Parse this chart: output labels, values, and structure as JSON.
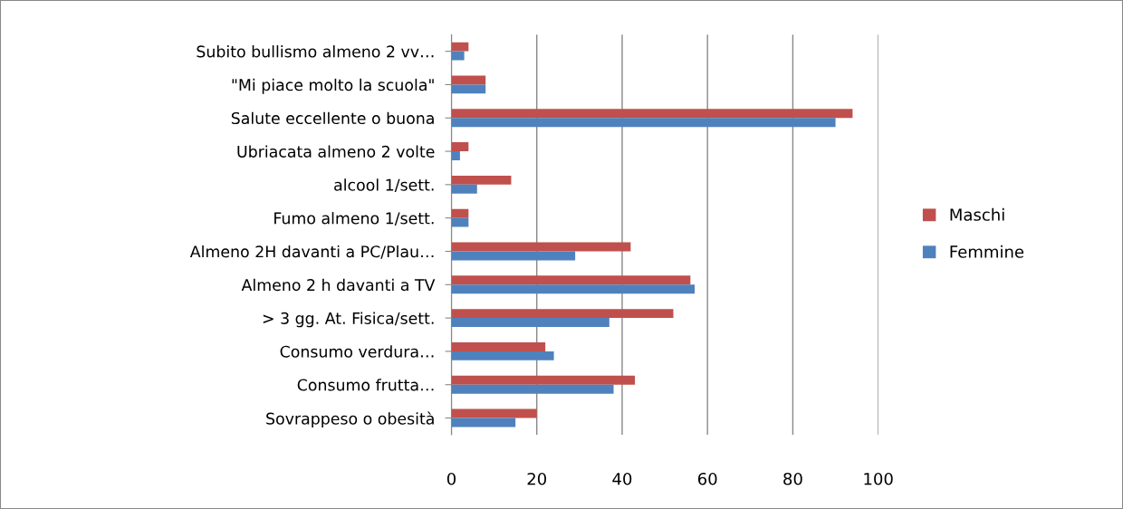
{
  "chart_data": {
    "type": "bar",
    "orientation": "horizontal",
    "categories": [
      "Subito bullismo almeno 2 vv…",
      "\"Mi piace molto la scuola\"",
      "Salute eccellente o buona",
      "Ubriacata almeno 2 volte",
      "alcool 1/sett.",
      "Fumo almeno 1/sett.",
      "Almeno 2H davanti a PC/Plau…",
      "Almeno 2 h davanti a TV",
      "> 3 gg. At. Fisica/sett.",
      "Consumo verdura…",
      "Consumo frutta…",
      "Sovrappeso o obesità"
    ],
    "series": [
      {
        "name": "Maschi",
        "color": "#c0504d",
        "values": [
          4,
          8,
          94,
          4,
          14,
          4,
          42,
          56,
          52,
          22,
          43,
          20
        ]
      },
      {
        "name": "Femmine",
        "color": "#4f81bd",
        "values": [
          3,
          8,
          90,
          2,
          6,
          4,
          29,
          57,
          37,
          24,
          38,
          15
        ]
      }
    ],
    "xlim": [
      0,
      100
    ],
    "xticks": [
      0,
      20,
      40,
      60,
      80,
      100
    ],
    "grid": "x",
    "legend": "right"
  }
}
